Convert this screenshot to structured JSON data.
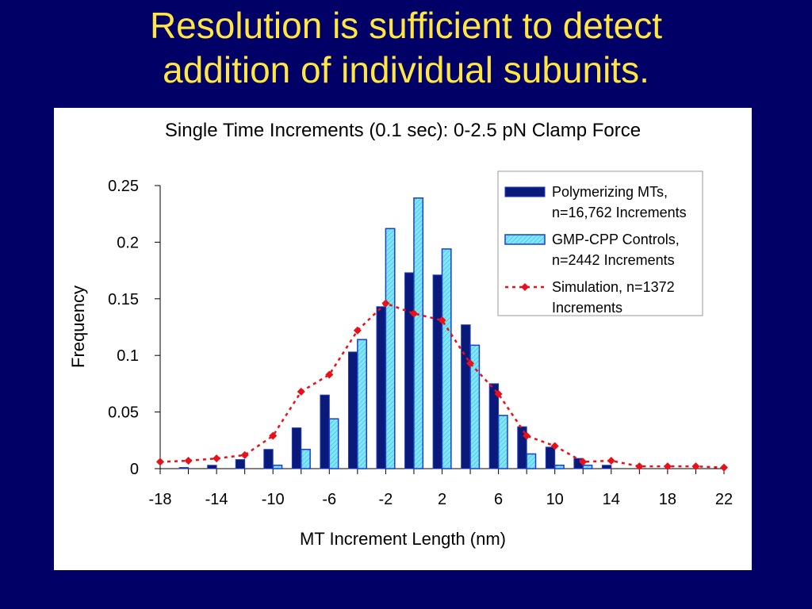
{
  "slide": {
    "title_line1": "Resolution is sufficient to detect",
    "title_line2": "addition of individual subunits."
  },
  "colors": {
    "background": "#000066",
    "title": "#FFE640",
    "polymerizing": "#0A1A7A",
    "gmpcpp": "#7FE6F5",
    "gmpcpp_edge": "#1A3FD0",
    "simulation": "#E8101A"
  },
  "chart_data": {
    "type": "bar",
    "title": "Single Time Increments (0.1 sec):  0-2.5 pN Clamp Force",
    "xlabel": "MT Increment Length (nm)",
    "ylabel": "Frequency",
    "ylim": [
      0,
      0.25
    ],
    "yticks": [
      "0",
      "0.05",
      "0.1",
      "0.15",
      "0.2",
      "0.25"
    ],
    "xticks": [
      "-18",
      "-14",
      "-10",
      "-6",
      "-2",
      "2",
      "6",
      "10",
      "14",
      "18",
      "22"
    ],
    "xlim": [
      -18,
      22
    ],
    "grid": false,
    "legend_position": "top-right",
    "categories": [
      -16,
      -14,
      -12,
      -10,
      -8,
      -6,
      -4,
      -2,
      0,
      2,
      4,
      6,
      8,
      10,
      12,
      14
    ],
    "series": [
      {
        "name": "Polymerizing MTs, n=16,762 Increments",
        "kind": "bar",
        "values": [
          0.001,
          0.003,
          0.008,
          0.017,
          0.036,
          0.065,
          0.103,
          0.143,
          0.173,
          0.171,
          0.127,
          0.075,
          0.037,
          0.019,
          0.009,
          0.003
        ]
      },
      {
        "name": "GMP-CPP Controls, n=2442 Increments",
        "kind": "bar",
        "values": [
          0,
          0,
          0,
          0.003,
          0.017,
          0.044,
          0.114,
          0.212,
          0.239,
          0.194,
          0.109,
          0.047,
          0.013,
          0.003,
          0.003,
          0
        ]
      },
      {
        "name": "Simulation, n=1372 Increments",
        "kind": "line",
        "x": [
          -18,
          -16,
          -14,
          -12,
          -10,
          -8,
          -6,
          -4,
          -2,
          0,
          2,
          4,
          6,
          8,
          10,
          12,
          14,
          16,
          18,
          20,
          22
        ],
        "values": [
          0.006,
          0.007,
          0.009,
          0.012,
          0.029,
          0.068,
          0.083,
          0.122,
          0.146,
          0.137,
          0.131,
          0.093,
          0.066,
          0.029,
          0.02,
          0.006,
          0.007,
          0.002,
          0.002,
          0.002,
          0.001
        ]
      }
    ],
    "legend": [
      {
        "line1": "Polymerizing MTs,",
        "line2": "n=16,762 Increments"
      },
      {
        "line1": "GMP-CPP Controls,",
        "line2": "n=2442 Increments"
      },
      {
        "line1": "Simulation, n=1372",
        "line2": "Increments"
      }
    ]
  }
}
